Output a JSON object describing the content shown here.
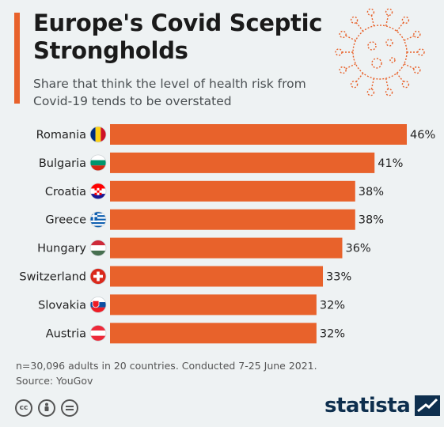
{
  "title": "Europe's Covid Sceptic Strongholds",
  "subtitle": "Share that think the level of health risk from Covid-19 tends to be overstated",
  "footer": {
    "note": "n=30,096 adults in 20 countries. Conducted 7-25 June 2021.",
    "source": "Source: YouGov"
  },
  "brand": "statista",
  "colors": {
    "bar": "#e8622b",
    "background": "#eef2f3",
    "title_accent": "#e8622b"
  },
  "chart_data": {
    "type": "bar",
    "orientation": "horizontal",
    "title": "Europe's Covid Sceptic Strongholds",
    "categories": [
      "Romania",
      "Bulgaria",
      "Croatia",
      "Greece",
      "Hungary",
      "Switzerland",
      "Slovakia",
      "Austria"
    ],
    "values": [
      46,
      41,
      38,
      38,
      36,
      33,
      32,
      32
    ],
    "value_labels": [
      "46%",
      "41%",
      "38%",
      "38%",
      "36%",
      "33%",
      "32%",
      "32%"
    ],
    "flags": [
      "romania-flag",
      "bulgaria-flag",
      "croatia-flag",
      "greece-flag",
      "hungary-flag",
      "switzerland-flag",
      "slovakia-flag",
      "austria-flag"
    ],
    "xlim": [
      0,
      46
    ],
    "grid": false,
    "unit": "%"
  }
}
